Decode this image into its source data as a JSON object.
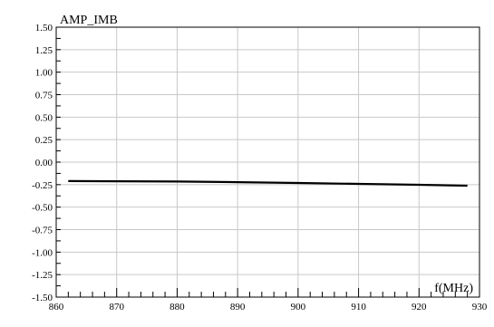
{
  "chart_data": {
    "type": "line",
    "title": "AMP_IMB",
    "xlabel": "f(MHz)",
    "ylabel": "",
    "xlim": [
      860,
      930
    ],
    "ylim": [
      -1.5,
      1.5
    ],
    "x_ticks": [
      860,
      870,
      880,
      890,
      900,
      910,
      920,
      930
    ],
    "x_tick_labels": [
      "860",
      "870",
      "880",
      "890",
      "900",
      "910",
      "920",
      "930"
    ],
    "y_ticks": [
      1.5,
      1.25,
      1.0,
      0.75,
      0.5,
      0.25,
      0.0,
      -0.25,
      -0.5,
      -0.75,
      -1.0,
      -1.25,
      -1.5
    ],
    "y_tick_labels": [
      "1.50",
      "1.25",
      "1.00",
      "0.75",
      "0.50",
      "0.25",
      "0.00",
      "-0.25",
      "-0.50",
      "-0.75",
      "-1.00",
      "-1.25",
      "-1.50"
    ],
    "grid": true,
    "series": [
      {
        "color": "#000000",
        "x": [
          862,
          870,
          880,
          890,
          900,
          910,
          920,
          928
        ],
        "y": [
          -0.21,
          -0.212,
          -0.215,
          -0.222,
          -0.232,
          -0.242,
          -0.252,
          -0.262
        ]
      }
    ]
  }
}
